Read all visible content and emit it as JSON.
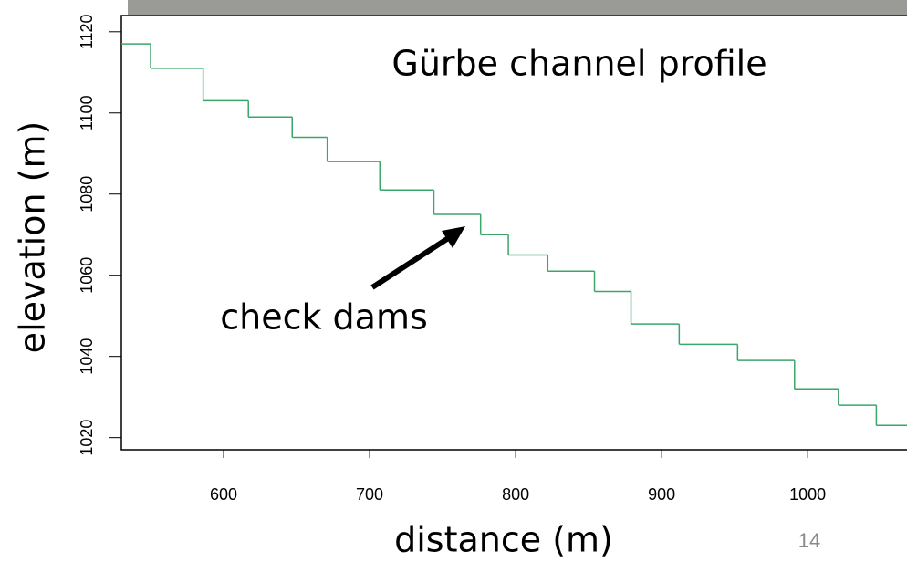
{
  "chart_data": {
    "type": "line",
    "step": "post",
    "title": "Gürbe channel profile",
    "x_label": "distance (m)",
    "y_label": "elevation (m)",
    "annotation": "check dams",
    "x": [
      530,
      550,
      586,
      617,
      647,
      671,
      707,
      744,
      776,
      795,
      822,
      854,
      879,
      912,
      952,
      991,
      1021,
      1047,
      1068
    ],
    "y": [
      1117,
      1111,
      1103,
      1099,
      1094,
      1088,
      1081,
      1075,
      1070,
      1065,
      1061,
      1056,
      1048,
      1043,
      1039,
      1032,
      1028,
      1023,
      1023
    ],
    "color": "#3aa66a",
    "xlim": [
      530,
      1068
    ],
    "ylim": [
      1017,
      1124
    ],
    "xticks": [
      600,
      700,
      800,
      900,
      1000
    ],
    "yticks": [
      1020,
      1040,
      1060,
      1080,
      1100,
      1120
    ]
  },
  "slide_number": "14"
}
